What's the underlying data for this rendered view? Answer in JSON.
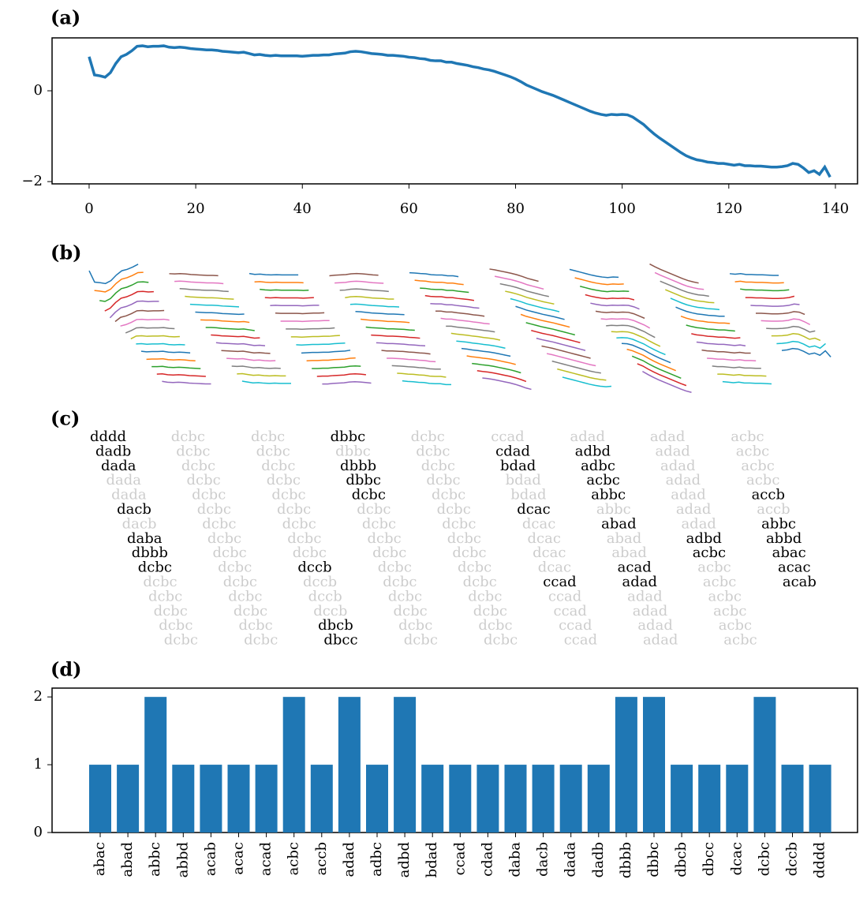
{
  "chart_data": [
    {
      "type": "line",
      "title": "(a)",
      "color": "#1f77b4",
      "values": [
        0.75,
        0.35,
        0.33,
        0.3,
        0.4,
        0.6,
        0.75,
        0.8,
        0.88,
        0.98,
        0.99,
        0.97,
        0.98,
        0.98,
        0.99,
        0.96,
        0.95,
        0.96,
        0.95,
        0.93,
        0.92,
        0.91,
        0.9,
        0.9,
        0.89,
        0.87,
        0.86,
        0.85,
        0.84,
        0.85,
        0.82,
        0.79,
        0.8,
        0.78,
        0.77,
        0.78,
        0.77,
        0.77,
        0.77,
        0.77,
        0.76,
        0.77,
        0.78,
        0.78,
        0.79,
        0.79,
        0.81,
        0.82,
        0.83,
        0.86,
        0.87,
        0.86,
        0.84,
        0.82,
        0.81,
        0.8,
        0.78,
        0.78,
        0.77,
        0.76,
        0.74,
        0.73,
        0.71,
        0.7,
        0.67,
        0.66,
        0.66,
        0.63,
        0.63,
        0.6,
        0.58,
        0.56,
        0.53,
        0.51,
        0.48,
        0.46,
        0.43,
        0.39,
        0.35,
        0.31,
        0.26,
        0.2,
        0.13,
        0.08,
        0.03,
        -0.02,
        -0.06,
        -0.1,
        -0.15,
        -0.2,
        -0.25,
        -0.3,
        -0.35,
        -0.4,
        -0.45,
        -0.49,
        -0.52,
        -0.54,
        -0.52,
        -0.53,
        -0.52,
        -0.53,
        -0.58,
        -0.66,
        -0.74,
        -0.85,
        -0.95,
        -1.04,
        -1.12,
        -1.2,
        -1.28,
        -1.36,
        -1.43,
        -1.48,
        -1.52,
        -1.54,
        -1.57,
        -1.58,
        -1.6,
        -1.6,
        -1.62,
        -1.64,
        -1.62,
        -1.65,
        -1.65,
        -1.66,
        -1.66,
        -1.67,
        -1.68,
        -1.68,
        -1.67,
        -1.65,
        -1.6,
        -1.62,
        -1.7,
        -1.8,
        -1.76,
        -1.84,
        -1.68,
        -1.9
      ],
      "xlim": [
        -6.95,
        144.15
      ],
      "ylim": [
        -2.05,
        1.165
      ],
      "xticks": [
        0,
        20,
        40,
        60,
        80,
        100,
        120,
        140
      ],
      "yticks": [
        {
          "value": -2,
          "label": "−2"
        },
        0
      ]
    },
    {
      "type": "windows",
      "title": "(b)",
      "colors": [
        "#1f77b4",
        "#ff7f0e",
        "#2ca02c",
        "#d62728",
        "#9467bd",
        "#8c564b",
        "#e377c2",
        "#7f7f7f",
        "#bcbd22",
        "#17becf"
      ]
    },
    {
      "type": "words",
      "title": "(c)",
      "colors": [
        "#1f77b4",
        "#ff7f0e",
        "#2ca02c",
        "#d62728",
        "#9467bd",
        "#8c564b",
        "#e377c2",
        "#7f7f7f",
        "#bcbd22",
        "#17becf"
      ],
      "words": [
        "dddd",
        "dadb",
        "dada",
        "dada",
        "dada",
        "dacb",
        "dacb",
        "daba",
        "dbbb",
        "dcbc",
        "dcbc",
        "dcbc",
        "dcbc",
        "dcbc",
        "dcbc",
        "dcbc",
        "dcbc",
        "dcbc",
        "dcbc",
        "dcbc",
        "dcbc",
        "dcbc",
        "dcbc",
        "dcbc",
        "dcbc",
        "dcbc",
        "dcbc",
        "dcbc",
        "dcbc",
        "dcbc",
        "dcbc",
        "dcbc",
        "dcbc",
        "dcbc",
        "dcbc",
        "dcbc",
        "dcbc",
        "dcbc",
        "dcbc",
        "dccb",
        "dccb",
        "dccb",
        "dccb",
        "dbcb",
        "dbcc",
        "dbbc",
        "dbbc",
        "dbbb",
        "dbbc",
        "dcbc",
        "dcbc",
        "dcbc",
        "dcbc",
        "dcbc",
        "dcbc",
        "dcbc",
        "dcbc",
        "dcbc",
        "dcbc",
        "dcbc",
        "dcbc",
        "dcbc",
        "dcbc",
        "dcbc",
        "dcbc",
        "dcbc",
        "dcbc",
        "dcbc",
        "dcbc",
        "dcbc",
        "dcbc",
        "dcbc",
        "dcbc",
        "dcbc",
        "dcbc",
        "ccad",
        "cdad",
        "bdad",
        "bdad",
        "bdad",
        "dcac",
        "dcac",
        "dcac",
        "dcac",
        "dcac",
        "ccad",
        "ccad",
        "ccad",
        "ccad",
        "ccad",
        "adad",
        "adbd",
        "adbc",
        "acbc",
        "abbc",
        "abbc",
        "abad",
        "abad",
        "abad",
        "acad",
        "adad",
        "adad",
        "adad",
        "adad",
        "adad",
        "adad",
        "adad",
        "adad",
        "adad",
        "adad",
        "adad",
        "adad",
        "adbd",
        "acbc",
        "acbc",
        "acbc",
        "acbc",
        "acbc",
        "acbc",
        "acbc",
        "acbc",
        "acbc",
        "acbc",
        "acbc",
        "accb",
        "accb",
        "abbc",
        "abbd",
        "abac",
        "acac",
        "acab"
      ],
      "highlighted": [
        true,
        true,
        true,
        false,
        false,
        true,
        false,
        true,
        true,
        true,
        false,
        false,
        false,
        false,
        false,
        false,
        false,
        false,
        false,
        false,
        false,
        false,
        false,
        false,
        false,
        false,
        false,
        false,
        false,
        false,
        false,
        false,
        false,
        false,
        false,
        false,
        false,
        false,
        false,
        true,
        false,
        false,
        false,
        true,
        true,
        true,
        false,
        true,
        true,
        true,
        false,
        false,
        false,
        false,
        false,
        false,
        false,
        false,
        false,
        false,
        false,
        false,
        false,
        false,
        false,
        false,
        false,
        false,
        false,
        false,
        false,
        false,
        false,
        false,
        false,
        false,
        true,
        true,
        false,
        false,
        true,
        false,
        false,
        false,
        false,
        true,
        false,
        false,
        false,
        false,
        false,
        true,
        true,
        true,
        true,
        false,
        true,
        false,
        false,
        true,
        true,
        false,
        false,
        false,
        false,
        false,
        false,
        false,
        false,
        false,
        false,
        false,
        true,
        true,
        false,
        false,
        false,
        false,
        false,
        false,
        false,
        false,
        false,
        false,
        true,
        false,
        true,
        true,
        true,
        true,
        true
      ]
    },
    {
      "type": "bar",
      "title": "(d)",
      "color": "#1f77b4",
      "categories": [
        "abac",
        "abad",
        "abbc",
        "abbd",
        "acab",
        "acac",
        "acad",
        "acbc",
        "accb",
        "adad",
        "adbc",
        "adbd",
        "bdad",
        "ccad",
        "cdad",
        "daba",
        "dacb",
        "dada",
        "dadb",
        "dbbb",
        "dbbc",
        "dbcb",
        "dbcc",
        "dcac",
        "dcbc",
        "dccb",
        "dddd"
      ],
      "values": [
        1,
        1,
        2,
        1,
        1,
        1,
        1,
        2,
        1,
        2,
        1,
        2,
        1,
        1,
        1,
        1,
        1,
        1,
        1,
        2,
        2,
        1,
        1,
        1,
        2,
        1,
        1
      ],
      "ylim": [
        0,
        2.13
      ],
      "yticks": [
        0,
        1,
        2
      ]
    }
  ]
}
